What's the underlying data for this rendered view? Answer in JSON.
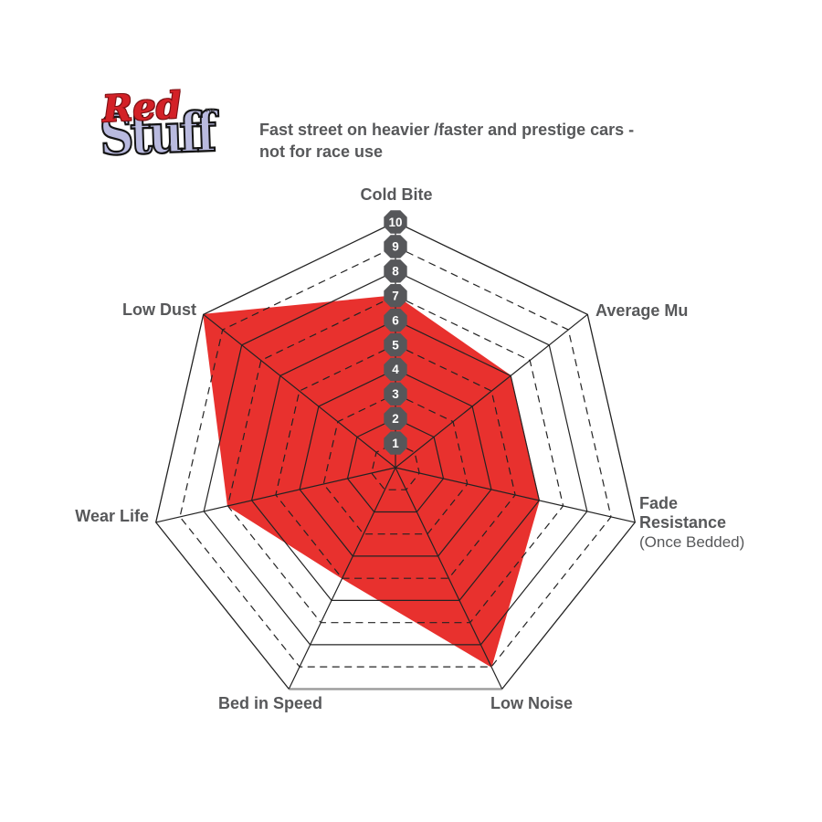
{
  "logo": {
    "word_top": "Red",
    "word_bottom": "Stuff",
    "trademark": "™",
    "color_red": "#d32127",
    "color_purple": "#b9badf"
  },
  "subtitle": {
    "line1": "Fast street on heavier /faster and prestige cars -",
    "line2": "not for race use"
  },
  "axis_labels": {
    "cold_bite": "Cold Bite",
    "average_mu": "Average Mu",
    "fade_line1": "Fade",
    "fade_line2": "Resistance",
    "fade_line3": "(Once Bedded)",
    "low_noise": "Low Noise",
    "bed_in_speed": "Bed in Speed",
    "wear_life": "Wear Life",
    "low_dust": "Low Dust"
  },
  "chart_data": {
    "type": "radar",
    "categories": [
      "Cold Bite",
      "Average Mu",
      "Fade Resistance (Once Bedded)",
      "Low Noise",
      "Bed in Speed",
      "Wear Life",
      "Low Dust"
    ],
    "values": [
      7,
      6,
      6,
      9,
      5,
      7,
      10
    ],
    "scale": {
      "min": 0,
      "max": 10,
      "ticks": [
        1,
        2,
        3,
        4,
        5,
        6,
        7,
        8,
        9,
        10
      ]
    },
    "grid": {
      "rings": 10,
      "shape": "heptagon",
      "even_rings": "solid",
      "odd_rings": "dashed",
      "spokes": true
    },
    "legend": {
      "visible": false
    },
    "colors": {
      "fill": "#e8312e",
      "grid_line": "#232323",
      "badge_bg": "#56575a",
      "badge_text": "#ffffff",
      "label_text": "#57585a",
      "outer_bottom_edge": "#9b9b9b"
    }
  }
}
